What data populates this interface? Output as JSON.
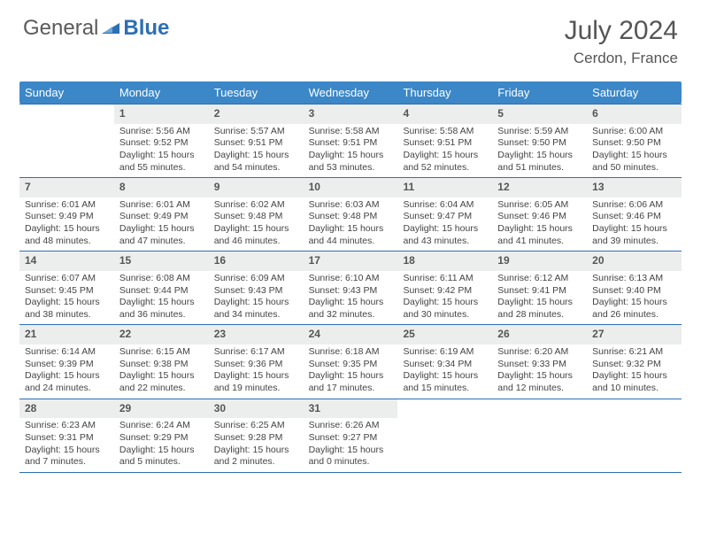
{
  "brand": {
    "part1": "General",
    "part2": "Blue"
  },
  "title": "July 2024",
  "location": "Cerdon, France",
  "colors": {
    "header_bg": "#3b87c8",
    "border": "#2d6fb5",
    "daynum_bg": "#eceeee",
    "text": "#444444"
  },
  "day_names": [
    "Sunday",
    "Monday",
    "Tuesday",
    "Wednesday",
    "Thursday",
    "Friday",
    "Saturday"
  ],
  "weeks": [
    [
      {
        "n": "",
        "sunrise": "",
        "sunset": "",
        "daylight": ""
      },
      {
        "n": "1",
        "sunrise": "Sunrise: 5:56 AM",
        "sunset": "Sunset: 9:52 PM",
        "daylight": "Daylight: 15 hours and 55 minutes."
      },
      {
        "n": "2",
        "sunrise": "Sunrise: 5:57 AM",
        "sunset": "Sunset: 9:51 PM",
        "daylight": "Daylight: 15 hours and 54 minutes."
      },
      {
        "n": "3",
        "sunrise": "Sunrise: 5:58 AM",
        "sunset": "Sunset: 9:51 PM",
        "daylight": "Daylight: 15 hours and 53 minutes."
      },
      {
        "n": "4",
        "sunrise": "Sunrise: 5:58 AM",
        "sunset": "Sunset: 9:51 PM",
        "daylight": "Daylight: 15 hours and 52 minutes."
      },
      {
        "n": "5",
        "sunrise": "Sunrise: 5:59 AM",
        "sunset": "Sunset: 9:50 PM",
        "daylight": "Daylight: 15 hours and 51 minutes."
      },
      {
        "n": "6",
        "sunrise": "Sunrise: 6:00 AM",
        "sunset": "Sunset: 9:50 PM",
        "daylight": "Daylight: 15 hours and 50 minutes."
      }
    ],
    [
      {
        "n": "7",
        "sunrise": "Sunrise: 6:01 AM",
        "sunset": "Sunset: 9:49 PM",
        "daylight": "Daylight: 15 hours and 48 minutes."
      },
      {
        "n": "8",
        "sunrise": "Sunrise: 6:01 AM",
        "sunset": "Sunset: 9:49 PM",
        "daylight": "Daylight: 15 hours and 47 minutes."
      },
      {
        "n": "9",
        "sunrise": "Sunrise: 6:02 AM",
        "sunset": "Sunset: 9:48 PM",
        "daylight": "Daylight: 15 hours and 46 minutes."
      },
      {
        "n": "10",
        "sunrise": "Sunrise: 6:03 AM",
        "sunset": "Sunset: 9:48 PM",
        "daylight": "Daylight: 15 hours and 44 minutes."
      },
      {
        "n": "11",
        "sunrise": "Sunrise: 6:04 AM",
        "sunset": "Sunset: 9:47 PM",
        "daylight": "Daylight: 15 hours and 43 minutes."
      },
      {
        "n": "12",
        "sunrise": "Sunrise: 6:05 AM",
        "sunset": "Sunset: 9:46 PM",
        "daylight": "Daylight: 15 hours and 41 minutes."
      },
      {
        "n": "13",
        "sunrise": "Sunrise: 6:06 AM",
        "sunset": "Sunset: 9:46 PM",
        "daylight": "Daylight: 15 hours and 39 minutes."
      }
    ],
    [
      {
        "n": "14",
        "sunrise": "Sunrise: 6:07 AM",
        "sunset": "Sunset: 9:45 PM",
        "daylight": "Daylight: 15 hours and 38 minutes."
      },
      {
        "n": "15",
        "sunrise": "Sunrise: 6:08 AM",
        "sunset": "Sunset: 9:44 PM",
        "daylight": "Daylight: 15 hours and 36 minutes."
      },
      {
        "n": "16",
        "sunrise": "Sunrise: 6:09 AM",
        "sunset": "Sunset: 9:43 PM",
        "daylight": "Daylight: 15 hours and 34 minutes."
      },
      {
        "n": "17",
        "sunrise": "Sunrise: 6:10 AM",
        "sunset": "Sunset: 9:43 PM",
        "daylight": "Daylight: 15 hours and 32 minutes."
      },
      {
        "n": "18",
        "sunrise": "Sunrise: 6:11 AM",
        "sunset": "Sunset: 9:42 PM",
        "daylight": "Daylight: 15 hours and 30 minutes."
      },
      {
        "n": "19",
        "sunrise": "Sunrise: 6:12 AM",
        "sunset": "Sunset: 9:41 PM",
        "daylight": "Daylight: 15 hours and 28 minutes."
      },
      {
        "n": "20",
        "sunrise": "Sunrise: 6:13 AM",
        "sunset": "Sunset: 9:40 PM",
        "daylight": "Daylight: 15 hours and 26 minutes."
      }
    ],
    [
      {
        "n": "21",
        "sunrise": "Sunrise: 6:14 AM",
        "sunset": "Sunset: 9:39 PM",
        "daylight": "Daylight: 15 hours and 24 minutes."
      },
      {
        "n": "22",
        "sunrise": "Sunrise: 6:15 AM",
        "sunset": "Sunset: 9:38 PM",
        "daylight": "Daylight: 15 hours and 22 minutes."
      },
      {
        "n": "23",
        "sunrise": "Sunrise: 6:17 AM",
        "sunset": "Sunset: 9:36 PM",
        "daylight": "Daylight: 15 hours and 19 minutes."
      },
      {
        "n": "24",
        "sunrise": "Sunrise: 6:18 AM",
        "sunset": "Sunset: 9:35 PM",
        "daylight": "Daylight: 15 hours and 17 minutes."
      },
      {
        "n": "25",
        "sunrise": "Sunrise: 6:19 AM",
        "sunset": "Sunset: 9:34 PM",
        "daylight": "Daylight: 15 hours and 15 minutes."
      },
      {
        "n": "26",
        "sunrise": "Sunrise: 6:20 AM",
        "sunset": "Sunset: 9:33 PM",
        "daylight": "Daylight: 15 hours and 12 minutes."
      },
      {
        "n": "27",
        "sunrise": "Sunrise: 6:21 AM",
        "sunset": "Sunset: 9:32 PM",
        "daylight": "Daylight: 15 hours and 10 minutes."
      }
    ],
    [
      {
        "n": "28",
        "sunrise": "Sunrise: 6:23 AM",
        "sunset": "Sunset: 9:31 PM",
        "daylight": "Daylight: 15 hours and 7 minutes."
      },
      {
        "n": "29",
        "sunrise": "Sunrise: 6:24 AM",
        "sunset": "Sunset: 9:29 PM",
        "daylight": "Daylight: 15 hours and 5 minutes."
      },
      {
        "n": "30",
        "sunrise": "Sunrise: 6:25 AM",
        "sunset": "Sunset: 9:28 PM",
        "daylight": "Daylight: 15 hours and 2 minutes."
      },
      {
        "n": "31",
        "sunrise": "Sunrise: 6:26 AM",
        "sunset": "Sunset: 9:27 PM",
        "daylight": "Daylight: 15 hours and 0 minutes."
      },
      {
        "n": "",
        "sunrise": "",
        "sunset": "",
        "daylight": ""
      },
      {
        "n": "",
        "sunrise": "",
        "sunset": "",
        "daylight": ""
      },
      {
        "n": "",
        "sunrise": "",
        "sunset": "",
        "daylight": ""
      }
    ]
  ]
}
